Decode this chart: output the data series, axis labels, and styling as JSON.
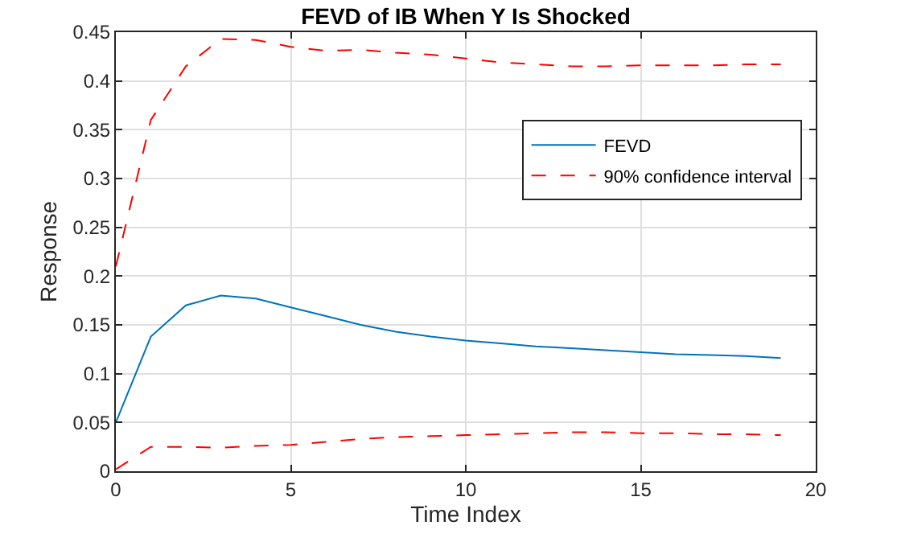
{
  "chart_data": {
    "type": "line",
    "title": "FEVD of IB When Y Is Shocked",
    "xlabel": "Time Index",
    "ylabel": "Response",
    "x": [
      0,
      1,
      2,
      3,
      4,
      5,
      6,
      7,
      8,
      9,
      10,
      11,
      12,
      13,
      14,
      15,
      16,
      17,
      18,
      19
    ],
    "series": [
      {
        "name": "FEVD",
        "color": "#0072bd",
        "line_style": "solid",
        "values": [
          0.05,
          0.138,
          0.17,
          0.18,
          0.177,
          0.168,
          0.159,
          0.15,
          0.143,
          0.138,
          0.134,
          0.131,
          0.128,
          0.126,
          0.124,
          0.122,
          0.12,
          0.119,
          0.118,
          0.116
        ]
      },
      {
        "name": "90% confidence interval",
        "color": "#ff0000",
        "line_style": "dashed",
        "values": [
          0.21,
          0.36,
          0.415,
          0.443,
          0.442,
          0.435,
          0.431,
          0.432,
          0.429,
          0.427,
          0.423,
          0.419,
          0.417,
          0.415,
          0.415,
          0.416,
          0.416,
          0.416,
          0.417,
          0.417
        ]
      },
      {
        "color": "#ff0000",
        "line_style": "dashed",
        "values": [
          0.002,
          0.025,
          0.025,
          0.024,
          0.026,
          0.027,
          0.03,
          0.033,
          0.035,
          0.036,
          0.037,
          0.038,
          0.039,
          0.04,
          0.04,
          0.039,
          0.039,
          0.038,
          0.038,
          0.037
        ]
      }
    ],
    "xlim": [
      0,
      20
    ],
    "xticks": [
      0,
      5,
      10,
      15,
      20
    ],
    "ylim": [
      0,
      0.45
    ],
    "yticks": [
      0,
      0.05,
      0.1,
      0.15,
      0.2,
      0.25,
      0.3,
      0.35,
      0.4,
      0.45
    ],
    "grid": true,
    "legend": "top right",
    "marker": "none"
  }
}
